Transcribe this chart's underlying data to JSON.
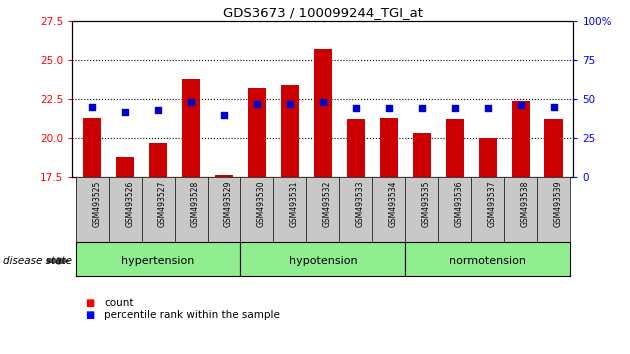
{
  "title": "GDS3673 / 100099244_TGI_at",
  "samples": [
    "GSM493525",
    "GSM493526",
    "GSM493527",
    "GSM493528",
    "GSM493529",
    "GSM493530",
    "GSM493531",
    "GSM493532",
    "GSM493533",
    "GSM493534",
    "GSM493535",
    "GSM493536",
    "GSM493537",
    "GSM493538",
    "GSM493539"
  ],
  "counts": [
    21.3,
    18.8,
    19.7,
    23.8,
    17.6,
    23.2,
    23.4,
    25.7,
    21.2,
    21.3,
    20.3,
    21.2,
    20.0,
    22.4,
    21.2
  ],
  "percentiles": [
    45,
    42,
    43,
    48,
    40,
    47,
    47,
    48,
    44,
    44,
    44,
    44,
    44,
    46,
    45
  ],
  "groups": [
    {
      "label": "hypertension",
      "start": 0,
      "end": 5
    },
    {
      "label": "hypotension",
      "start": 5,
      "end": 10
    },
    {
      "label": "normotension",
      "start": 10,
      "end": 15
    }
  ],
  "ylim_left": [
    17.5,
    27.5
  ],
  "ylim_right": [
    0,
    100
  ],
  "yticks_left": [
    17.5,
    20.0,
    22.5,
    25.0,
    27.5
  ],
  "yticks_right": [
    0,
    25,
    50,
    75,
    100
  ],
  "ytick_labels_right": [
    "0",
    "25",
    "50",
    "75",
    "100%"
  ],
  "bar_color": "#cc0000",
  "dot_color": "#0000cc",
  "group_bg": "#90EE90",
  "xtick_bg": "#c8c8c8",
  "disease_state_label": "disease state",
  "legend_items": [
    "count",
    "percentile rank within the sample"
  ],
  "grid_style": "dotted",
  "figsize": [
    6.3,
    3.54
  ],
  "dpi": 100
}
